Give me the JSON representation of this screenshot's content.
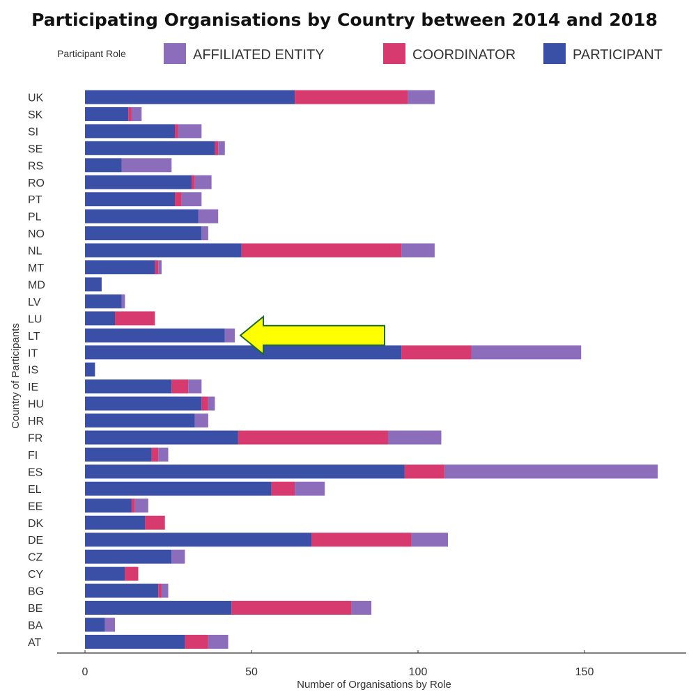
{
  "chart_data": {
    "type": "bar",
    "orientation": "horizontal",
    "stacked": true,
    "title": "Participating Organisations by Country between 2014 and 2018",
    "xlabel": "Number of Organisations by Role",
    "ylabel": "Country of Participants",
    "xlim": [
      0,
      180
    ],
    "xticks": [
      0,
      50,
      100,
      150
    ],
    "legend_title": "Participant Role",
    "legend_position": "top",
    "grid": false,
    "categories": [
      "UK",
      "SK",
      "SI",
      "SE",
      "RS",
      "RO",
      "PT",
      "PL",
      "NO",
      "NL",
      "MT",
      "MD",
      "LV",
      "LU",
      "LT",
      "IT",
      "IS",
      "IE",
      "HU",
      "HR",
      "FR",
      "FI",
      "ES",
      "EL",
      "EE",
      "DK",
      "DE",
      "CZ",
      "CY",
      "BG",
      "BE",
      "BA",
      "AT"
    ],
    "series": [
      {
        "name": "PARTICIPANT",
        "color": "#3a4fa6",
        "values": [
          63,
          13,
          27,
          39,
          11,
          32,
          27,
          34,
          35,
          47,
          21,
          5,
          11,
          9,
          42,
          95,
          3,
          26,
          35,
          33,
          46,
          20,
          96,
          56,
          14,
          18,
          68,
          26,
          12,
          22,
          44,
          6,
          30
        ]
      },
      {
        "name": "COORDINATOR",
        "color": "#d63a6e",
        "values": [
          34,
          1,
          1,
          1,
          0,
          1,
          2,
          0,
          0,
          48,
          1,
          0,
          0,
          12,
          0,
          21,
          0,
          5,
          2,
          0,
          45,
          2,
          12,
          7,
          1,
          6,
          30,
          0,
          4,
          1,
          36,
          0,
          7
        ]
      },
      {
        "name": "AFFILIATED ENTITY",
        "color": "#8b6dbb",
        "values": [
          8,
          3,
          7,
          2,
          15,
          5,
          6,
          6,
          2,
          10,
          1,
          0,
          1,
          0,
          3,
          33,
          0,
          4,
          2,
          4,
          16,
          3,
          64,
          9,
          4,
          0,
          11,
          4,
          0,
          2,
          6,
          3,
          6
        ]
      }
    ],
    "legend_order": [
      "AFFILIATED ENTITY",
      "COORDINATOR",
      "PARTICIPANT"
    ],
    "annotations": [
      {
        "type": "arrow",
        "color": "#ffff00",
        "target_category": "LT"
      }
    ]
  }
}
